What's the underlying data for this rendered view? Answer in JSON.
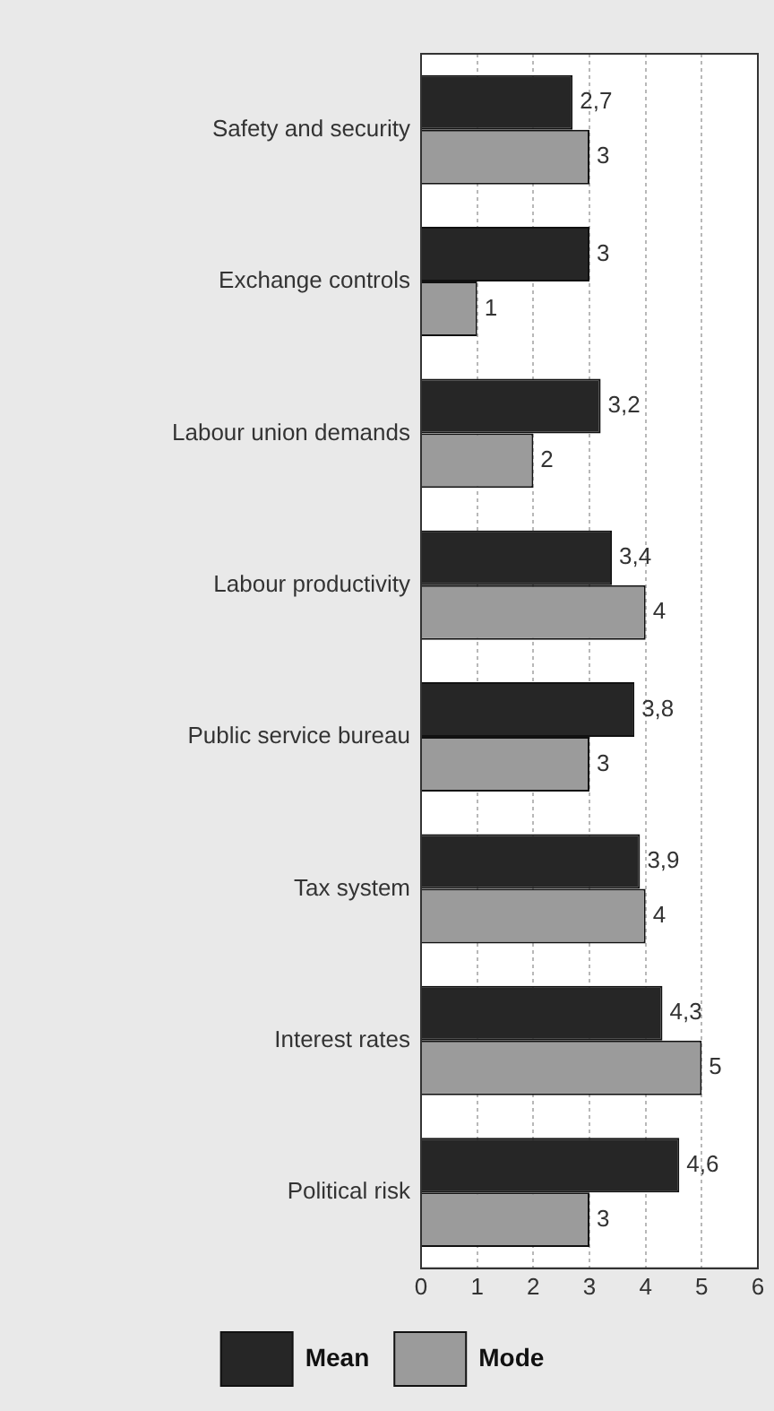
{
  "chart_data": {
    "type": "bar",
    "orientation": "horizontal",
    "categories": [
      "Safety and security",
      "Exchange controls",
      "Labour union demands",
      "Labour productivity",
      "Public service bureau",
      "Tax system",
      "Interest rates",
      "Political risk"
    ],
    "series": [
      {
        "name": "Mean",
        "color": "#262626",
        "values": [
          2.7,
          3,
          3.2,
          3.4,
          3.8,
          3.9,
          4.3,
          4.6
        ],
        "value_labels": [
          "2,7",
          "3",
          "3,2",
          "3,4",
          "3,8",
          "3,9",
          "4,3",
          "4,6"
        ]
      },
      {
        "name": "Mode",
        "color": "#9b9b9b",
        "values": [
          3,
          1,
          2,
          4,
          3,
          4,
          5,
          3
        ],
        "value_labels": [
          "3",
          "1",
          "2",
          "4",
          "3",
          "4",
          "5",
          "3"
        ]
      }
    ],
    "xlim": [
      0,
      6
    ],
    "xticks": [
      0,
      1,
      2,
      3,
      4,
      5,
      6
    ],
    "grid": "x",
    "legend": "bottom"
  }
}
